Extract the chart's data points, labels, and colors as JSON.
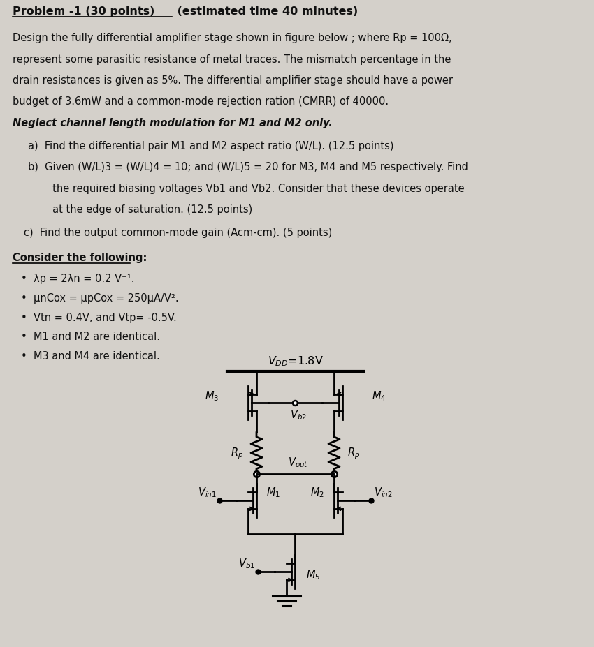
{
  "bg_color": "#d4d0ca",
  "text_color": "#111111",
  "fig_w": 8.5,
  "fig_h": 9.28,
  "dpi": 100,
  "title_bold": "Problem -1 (30 points)",
  "title_normal": " (estimated time 40 minutes)",
  "body_lines": [
    "Design the fully differential amplifier stage shown in figure below ; where Rp = 100Ω,",
    "represent some parasitic resistance of metal traces. The mismatch percentage in the",
    "drain resistances is given as 5%. The differential amplifier stage should have a power",
    "budget of 3.6mW and a common-mode rejection ration (CMRR) of 40000."
  ],
  "bold_italic_line": "Neglect channel length modulation for M1 and M2 only.",
  "sub_a": "a)  Find the differential pair M1 and M2 aspect ratio (W/L). (12.5 points)",
  "sub_b1": "b)  Given (W/L)3 = (W/L)4 = 10; and (W/L)5 = 20 for M3, M4 and M5 respectively. Find",
  "sub_b2": "     the required biasing voltages Vb1 and Vb2. Consider that these devices operate",
  "sub_b3": "     at the edge of saturation. (12.5 points)",
  "sub_c": "c)  Find the output common-mode gain (Acm-cm). (5 points)",
  "consider_header": "Consider the following:",
  "bullet1": "λp = 2λn = 0.2 V⁻¹.",
  "bullet2": "μnCox = μpCox = 250μA/V².",
  "bullet3": "Vtn = 0.4V, and Vtp= -0.5V.",
  "bullet4": "M1 and M2 are identical.",
  "bullet5": "M3 and M4 are identical.",
  "vdd_text": "V",
  "vdd_sub": "DD",
  "vdd_val": "=1.8V",
  "m3_text": "M",
  "m3_sub": "3",
  "m4_text": "M",
  "m4_sub": "4",
  "vb2_text": "V",
  "vb2_sub": "b2",
  "rp_text": "R",
  "rp_sub": "p",
  "vout_text": "V",
  "vout_sub": "out",
  "vin1_text": "V",
  "vin1_sub": "in1",
  "m1_text": "M",
  "m1_sub": "1",
  "m2_text": "M",
  "m2_sub": "2",
  "vin2_text": "V",
  "vin2_sub": "in2",
  "vb1_text": "V",
  "vb1_sub": "b1",
  "m5_text": "M",
  "m5_sub": "5"
}
